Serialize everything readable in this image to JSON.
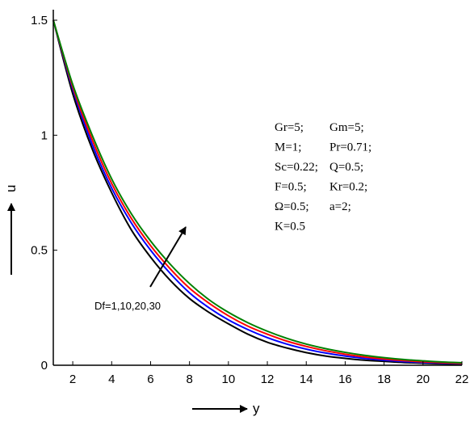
{
  "chart_data": {
    "type": "line",
    "xlabel": "y",
    "ylabel": "u",
    "xlim": [
      1,
      22
    ],
    "ylim": [
      0,
      1.5
    ],
    "xticks": [
      "2",
      "4",
      "6",
      "8",
      "10",
      "12",
      "14",
      "16",
      "18",
      "20",
      "22"
    ],
    "yticks": [
      "0",
      "0.5",
      "1",
      "1.5"
    ],
    "x": [
      1,
      2,
      3,
      4,
      5,
      6,
      7,
      8,
      9,
      10,
      11,
      12,
      13,
      14,
      15,
      16,
      17,
      18,
      19,
      20,
      21,
      22
    ],
    "series": [
      {
        "color": "#000000",
        "values": [
          1.5,
          1.18,
          0.94,
          0.75,
          0.59,
          0.47,
          0.37,
          0.29,
          0.23,
          0.18,
          0.135,
          0.1,
          0.075,
          0.055,
          0.04,
          0.03,
          0.022,
          0.017,
          0.012,
          0.009,
          0.006,
          0.004
        ]
      },
      {
        "color": "#0000ff",
        "values": [
          1.5,
          1.2,
          0.96,
          0.77,
          0.62,
          0.5,
          0.4,
          0.315,
          0.25,
          0.197,
          0.155,
          0.12,
          0.092,
          0.07,
          0.053,
          0.04,
          0.03,
          0.022,
          0.016,
          0.012,
          0.009,
          0.006
        ]
      },
      {
        "color": "#ff0000",
        "values": [
          1.5,
          1.21,
          0.98,
          0.79,
          0.64,
          0.52,
          0.42,
          0.335,
          0.27,
          0.215,
          0.17,
          0.135,
          0.105,
          0.082,
          0.063,
          0.048,
          0.036,
          0.027,
          0.02,
          0.015,
          0.011,
          0.008
        ]
      },
      {
        "color": "#008000",
        "values": [
          1.5,
          1.22,
          1.0,
          0.81,
          0.66,
          0.54,
          0.44,
          0.355,
          0.285,
          0.23,
          0.185,
          0.148,
          0.117,
          0.092,
          0.072,
          0.056,
          0.043,
          0.033,
          0.025,
          0.019,
          0.014,
          0.011
        ]
      }
    ],
    "parameters": [
      [
        "Gr=5;",
        "Gm=5;"
      ],
      [
        "M=1;",
        "Pr=0.71;"
      ],
      [
        "Sc=0.22;",
        "Q=0.5;"
      ],
      [
        "F=0.5;",
        "Kr=0.2;"
      ],
      [
        "Ω=0.5;",
        "a=2;"
      ],
      [
        "K=0.5",
        ""
      ]
    ],
    "annotation": "Df=1,10,20,30"
  }
}
